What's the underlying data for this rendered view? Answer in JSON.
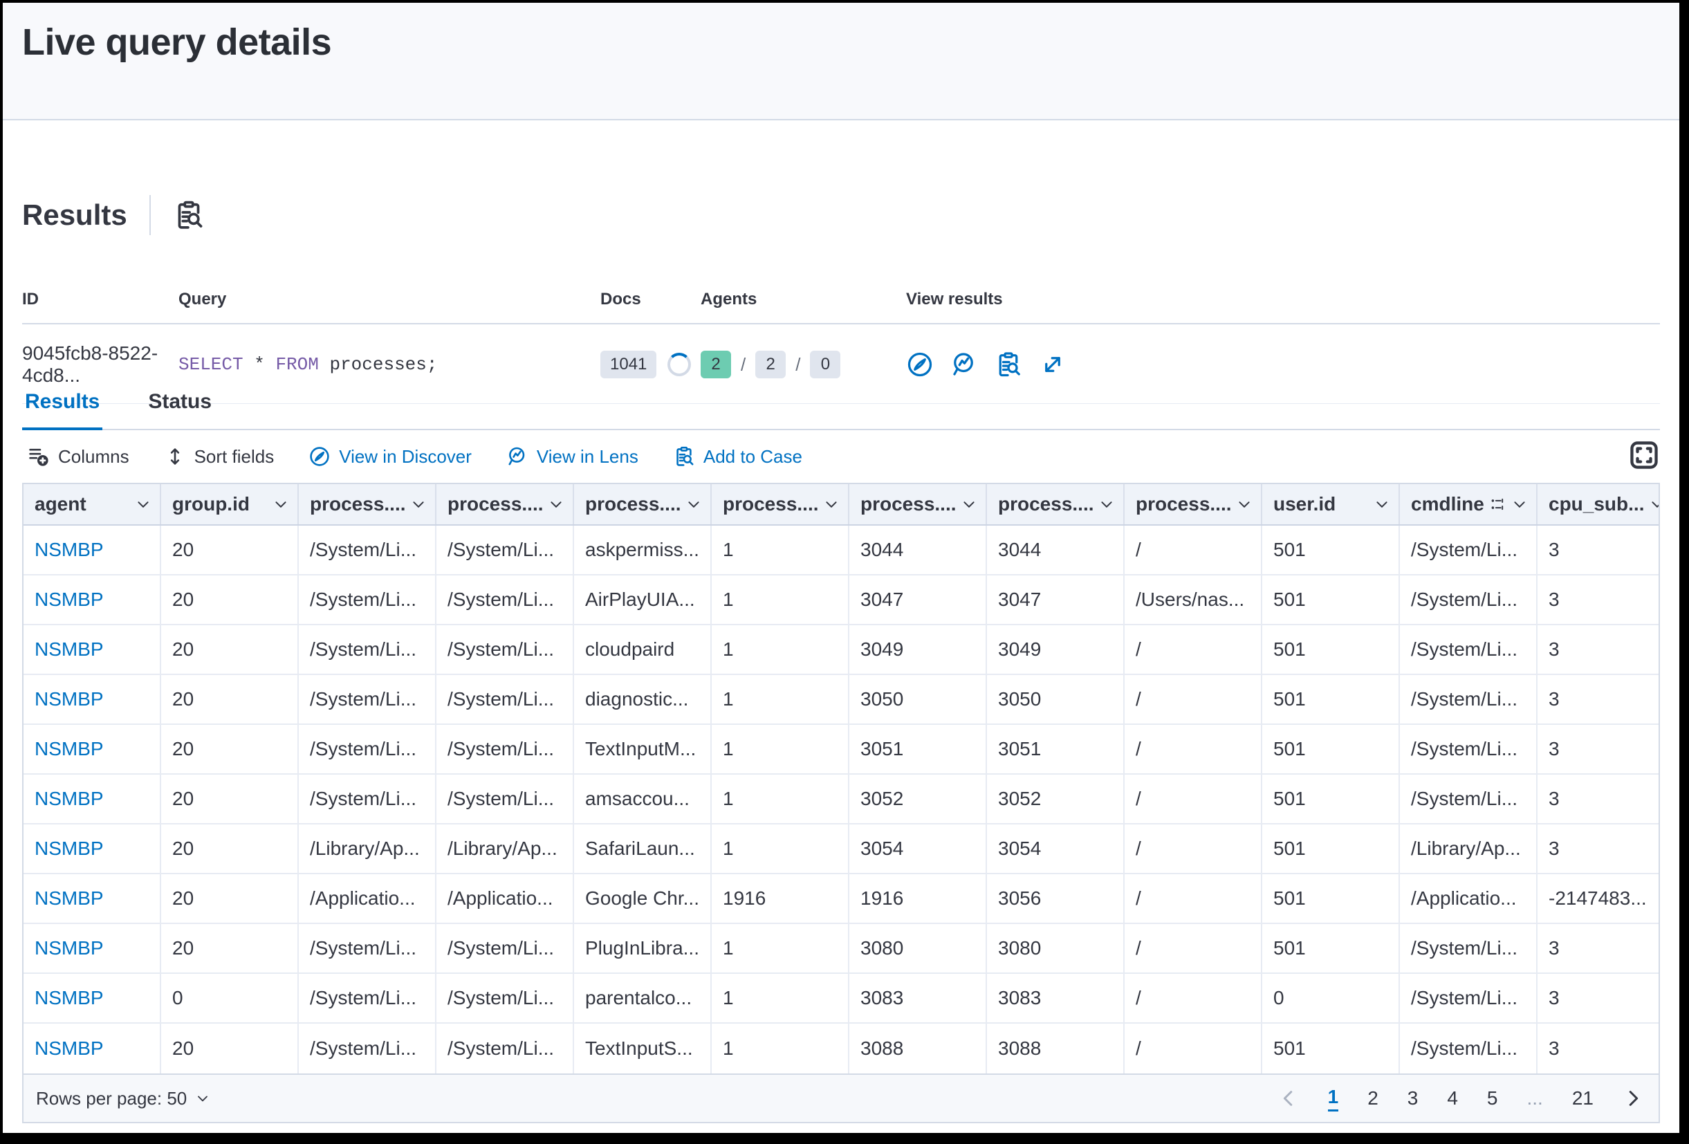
{
  "page": {
    "title": "Live query details"
  },
  "results": {
    "heading": "Results",
    "heading_icon": "inspect-icon",
    "summary": {
      "headers": {
        "id": "ID",
        "query": "Query",
        "docs": "Docs",
        "agents": "Agents",
        "view": "View results"
      },
      "row": {
        "id": "9045fcb8-8522-4cd8...",
        "query": {
          "select_kw": "SELECT",
          "star": " * ",
          "from_kw": "FROM",
          "table": " processes;"
        },
        "docs_count": "1041",
        "agents": {
          "success": "2",
          "sep": "/",
          "total": "2",
          "failed": "0"
        },
        "view_icons": [
          "discover",
          "lens",
          "inspect",
          "expand"
        ]
      }
    }
  },
  "tabs": {
    "results": "Results",
    "status": "Status"
  },
  "toolbar": {
    "columns": "Columns",
    "sort": "Sort fields",
    "discover": "View in Discover",
    "lens": "View in Lens",
    "case": "Add to Case"
  },
  "grid": {
    "columns": [
      {
        "label": "agent"
      },
      {
        "label": "group.id"
      },
      {
        "label": "process...."
      },
      {
        "label": "process...."
      },
      {
        "label": "process...."
      },
      {
        "label": "process...."
      },
      {
        "label": "process...."
      },
      {
        "label": "process...."
      },
      {
        "label": "process...."
      },
      {
        "label": "user.id"
      },
      {
        "label": "cmdline",
        "icon": "token"
      },
      {
        "label": "cpu_sub..."
      }
    ],
    "rows": [
      [
        "NSMBP",
        "20",
        "/System/Li...",
        "/System/Li...",
        "askpermiss...",
        "1",
        "3044",
        "3044",
        "/",
        "501",
        "/System/Li...",
        "3"
      ],
      [
        "NSMBP",
        "20",
        "/System/Li...",
        "/System/Li...",
        "AirPlayUIA...",
        "1",
        "3047",
        "3047",
        "/Users/nas...",
        "501",
        "/System/Li...",
        "3"
      ],
      [
        "NSMBP",
        "20",
        "/System/Li...",
        "/System/Li...",
        "cloudpaird",
        "1",
        "3049",
        "3049",
        "/",
        "501",
        "/System/Li...",
        "3"
      ],
      [
        "NSMBP",
        "20",
        "/System/Li...",
        "/System/Li...",
        "diagnostic...",
        "1",
        "3050",
        "3050",
        "/",
        "501",
        "/System/Li...",
        "3"
      ],
      [
        "NSMBP",
        "20",
        "/System/Li...",
        "/System/Li...",
        "TextInputM...",
        "1",
        "3051",
        "3051",
        "/",
        "501",
        "/System/Li...",
        "3"
      ],
      [
        "NSMBP",
        "20",
        "/System/Li...",
        "/System/Li...",
        "amsaccou...",
        "1",
        "3052",
        "3052",
        "/",
        "501",
        "/System/Li...",
        "3"
      ],
      [
        "NSMBP",
        "20",
        "/Library/Ap...",
        "/Library/Ap...",
        "SafariLaun...",
        "1",
        "3054",
        "3054",
        "/",
        "501",
        "/Library/Ap...",
        "3"
      ],
      [
        "NSMBP",
        "20",
        "/Applicatio...",
        "/Applicatio...",
        "Google Chr...",
        "1916",
        "1916",
        "3056",
        "/",
        "501",
        "/Applicatio...",
        "-2147483..."
      ],
      [
        "NSMBP",
        "20",
        "/System/Li...",
        "/System/Li...",
        "PlugInLibra...",
        "1",
        "3080",
        "3080",
        "/",
        "501",
        "/System/Li...",
        "3"
      ],
      [
        "NSMBP",
        "0",
        "/System/Li...",
        "/System/Li...",
        "parentalco...",
        "1",
        "3083",
        "3083",
        "/",
        "0",
        "/System/Li...",
        "3"
      ],
      [
        "NSMBP",
        "20",
        "/System/Li...",
        "/System/Li...",
        "TextInputS...",
        "1",
        "3088",
        "3088",
        "/",
        "501",
        "/System/Li...",
        "3"
      ]
    ]
  },
  "pagination": {
    "rows_per_page": "Rows per page: 50",
    "pages": [
      "1",
      "2",
      "3",
      "4",
      "5",
      "...",
      "21"
    ],
    "active": "1"
  },
  "colors": {
    "accent": "#0071c2",
    "text": "#343741",
    "badge_green": "#6dccb1",
    "badge_gray": "#e0e5ee",
    "sql_keyword": "#765ba7",
    "border": "#d3dae6"
  }
}
